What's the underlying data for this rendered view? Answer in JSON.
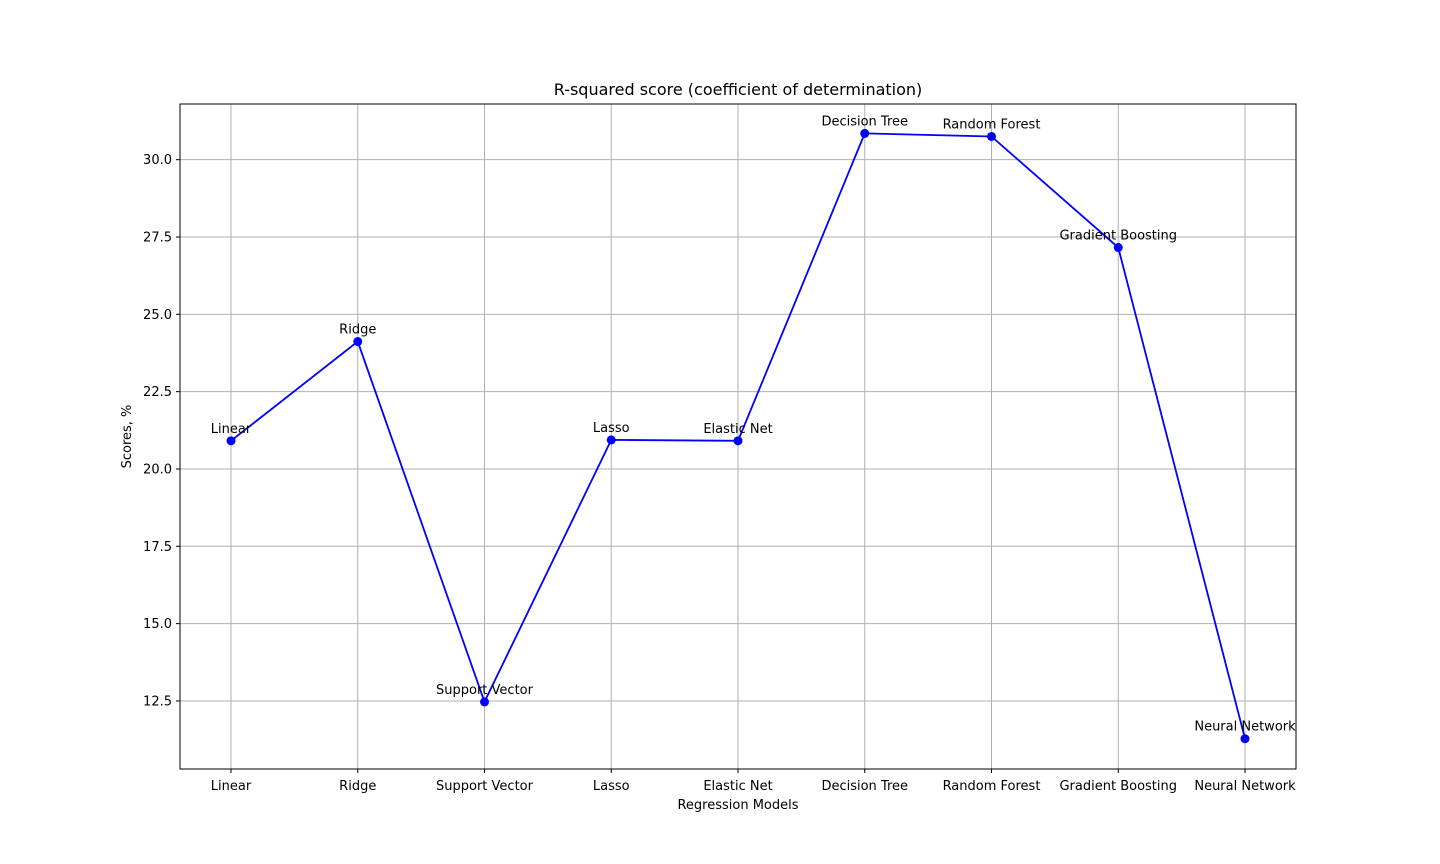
{
  "chart_data": {
    "type": "line",
    "title": "R-squared score (coefficient of determination)",
    "xlabel": "Regression Models",
    "ylabel": "Scores, %",
    "categories": [
      "Linear",
      "Ridge",
      "Support Vector",
      "Lasso",
      "Elastic Net",
      "Decision Tree",
      "Random Forest",
      "Gradient Boosting",
      "Neural Network"
    ],
    "series": [
      {
        "values": [
          20.91,
          24.12,
          12.47,
          20.94,
          20.91,
          30.85,
          30.75,
          27.16,
          11.28
        ],
        "color": "#0000ff",
        "marker": "circle"
      }
    ],
    "point_labels": [
      "Linear",
      "Ridge",
      "Support Vector",
      "Lasso",
      "Elastic Net",
      "Decision Tree",
      "Random Forest",
      "Gradient Boosting",
      "Neural Network"
    ],
    "yticks": [
      12.5,
      15.0,
      17.5,
      20.0,
      22.5,
      25.0,
      27.5,
      30.0
    ],
    "ytick_labels": [
      "12.5",
      "15.0",
      "17.5",
      "20.0",
      "22.5",
      "25.0",
      "27.5",
      "30.0"
    ],
    "ylim": [
      10.3,
      31.8
    ],
    "grid": true,
    "legend": false
  }
}
